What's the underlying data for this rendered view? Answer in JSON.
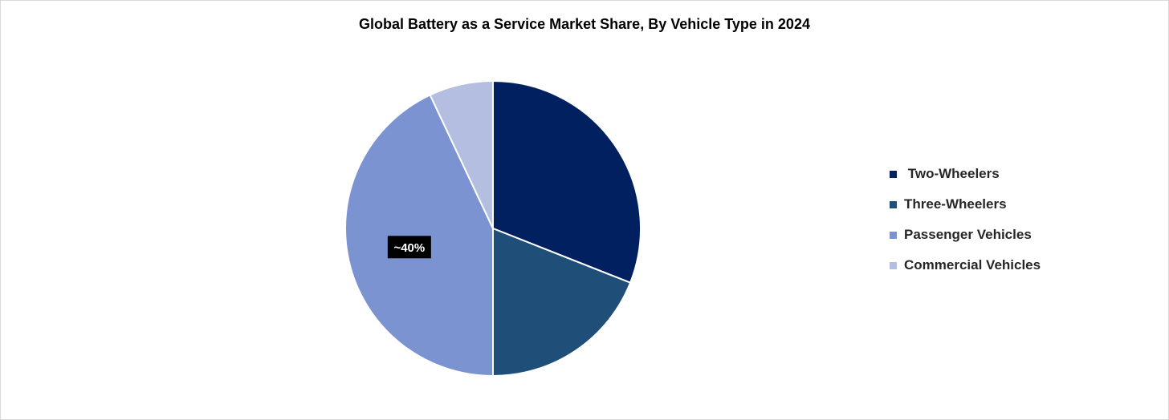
{
  "chart_data": {
    "type": "pie",
    "title": "Global Battery as a Service Market Share, By Vehicle Type in 2024",
    "categories": [
      " Two-Wheelers",
      "Three-Wheelers",
      "Passenger Vehicles",
      "Commercial Vehicles"
    ],
    "values": [
      31,
      19,
      43,
      7
    ],
    "colors": [
      "#002060",
      "#1F4E79",
      "#7B93D1",
      "#B4BEE0"
    ],
    "data_labels": [
      "",
      "",
      "~40%",
      ""
    ],
    "legend_position": "right",
    "start_angle": "12 o'clock",
    "direction": "clockwise"
  }
}
